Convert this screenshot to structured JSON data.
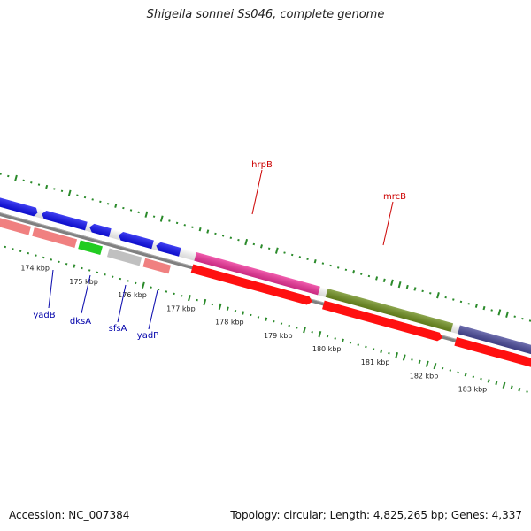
{
  "title": "Shigella sonnei Ss046, complete genome",
  "footer": {
    "accession": "Accession: NC_007384",
    "summary": "Topology: circular; Length: 4,825,265 bp; Genes: 4,337"
  },
  "scale_labels": [
    "174 kbp",
    "175 kbp",
    "176 kbp",
    "177 kbp",
    "178 kbp",
    "179 kbp",
    "180 kbp",
    "181 kbp",
    "182 kbp",
    "183 kbp"
  ],
  "gene_labels": [
    {
      "name": "hrpB",
      "color": "#cc0000"
    },
    {
      "name": "mrcB",
      "color": "#cc0000"
    },
    {
      "name": "yadB",
      "color": "#0000aa"
    },
    {
      "name": "dksA",
      "color": "#0000aa"
    },
    {
      "name": "sfsA",
      "color": "#0000aa"
    },
    {
      "name": "yadP",
      "color": "#0000aa"
    }
  ],
  "colors": {
    "backbone": "#808080",
    "gc_skew": "#2a8a2a",
    "cds_forward": "#ff1010",
    "cds_blue": "#1010f0",
    "pink": "#ee3399",
    "olive": "#6f8f20",
    "slate": "#4a4a9a",
    "salmon": "#f08080",
    "green": "#22cc22",
    "grey": "#c0c0c0"
  }
}
